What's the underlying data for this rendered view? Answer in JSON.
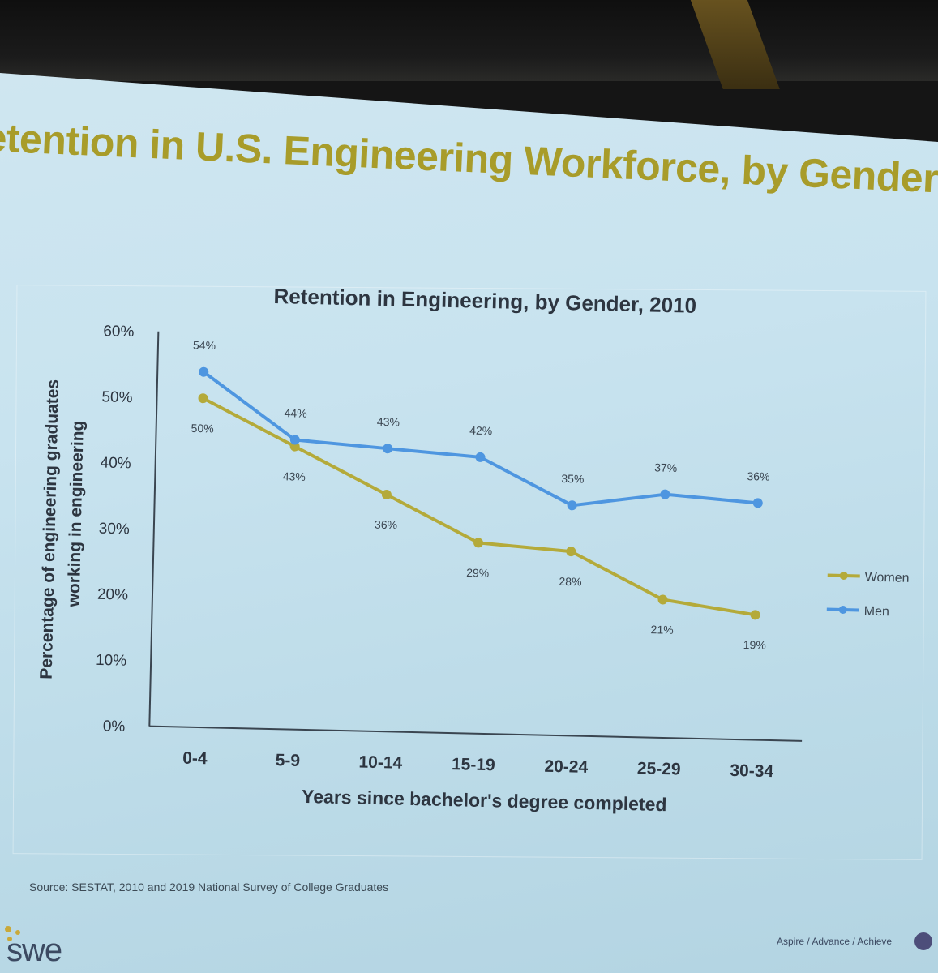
{
  "slide": {
    "title": "etention in U.S. Engineering Workforce, by Gender",
    "source": "Source: SESTAT, 2010 and 2019 National Survey of College Graduates",
    "logo_text": "swe",
    "tagline": "Aspire / Advance / Achieve"
  },
  "colors": {
    "women": "#b4aa3a",
    "men": "#4e96e0",
    "title": "#a89c2a",
    "axis": "#3a4550"
  },
  "chart_data": {
    "type": "line",
    "title": "Retention in Engineering, by Gender, 2010",
    "xlabel": "Years since bachelor's degree completed",
    "ylabel": "Percentage of engineering graduates working in engineering",
    "ylabel_lines": [
      "Percentage of engineering graduates",
      "working in engineering"
    ],
    "categories": [
      "0-4",
      "5-9",
      "10-14",
      "15-19",
      "20-24",
      "25-29",
      "30-34"
    ],
    "ylim": [
      0,
      60
    ],
    "yticks": [
      "0%",
      "10%",
      "20%",
      "30%",
      "40%",
      "50%",
      "60%"
    ],
    "legend_position": "right",
    "series": [
      {
        "name": "Women",
        "values": [
          50,
          43,
          36,
          29,
          28,
          21,
          19
        ],
        "labels": [
          "50%",
          "43%",
          "36%",
          "29%",
          "28%",
          "21%",
          "19%"
        ]
      },
      {
        "name": "Men",
        "values": [
          54,
          44,
          43,
          42,
          35,
          37,
          36
        ],
        "labels": [
          "54%",
          "44%",
          "43%",
          "42%",
          "35%",
          "37%",
          "36%"
        ]
      }
    ]
  }
}
